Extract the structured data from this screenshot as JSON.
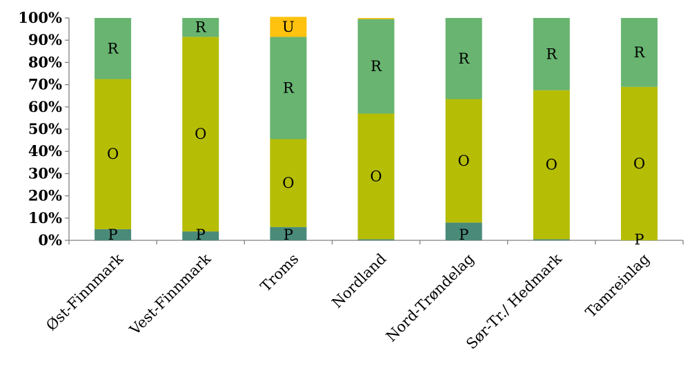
{
  "chart_data": {
    "type": "bar",
    "stacked": true,
    "percent": true,
    "categories": [
      "Øst-Finnmark",
      "Vest-Finnmark",
      "Troms",
      "Nordland",
      "Nord-Trøndelag",
      "Sør-Tr./  Hedmark",
      "Tamreinlag"
    ],
    "series": [
      {
        "name": "P",
        "color": "#4a8a78",
        "values": [
          5,
          4,
          6,
          0.5,
          8,
          0.5,
          0
        ]
      },
      {
        "name": "O",
        "color": "#b5bd05",
        "values": [
          67.5,
          87.5,
          39.5,
          56.5,
          55.5,
          67,
          69
        ]
      },
      {
        "name": "R",
        "color": "#68b470",
        "values": [
          27.5,
          8.5,
          46,
          42.5,
          36.5,
          32.5,
          31
        ]
      },
      {
        "name": "U",
        "color": "#ffc20e",
        "values": [
          0,
          0,
          9,
          0.5,
          0,
          0,
          0
        ]
      }
    ],
    "yticks": [
      "0%",
      "10%",
      "20%",
      "30%",
      "40%",
      "50%",
      "60%",
      "70%",
      "80%",
      "90%",
      "100%"
    ],
    "ylim": [
      0,
      100
    ],
    "xlabel": "",
    "ylabel": "",
    "title": "",
    "grid": false,
    "legend": "none"
  }
}
